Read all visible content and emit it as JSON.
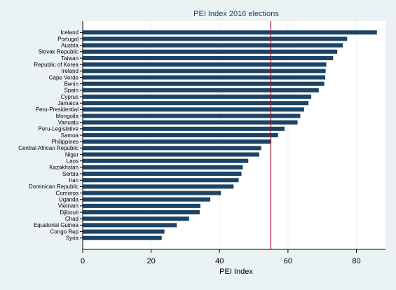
{
  "chart_data": {
    "type": "bar",
    "orientation": "horizontal",
    "title": "PEI Index 2016 elections",
    "xlabel": "PEI Index",
    "ylabel": "",
    "xlim": [
      0,
      88.5
    ],
    "x_ticks": [
      0,
      20,
      40,
      60,
      80
    ],
    "grid": true,
    "legend": "none",
    "reference_line": {
      "value": 55,
      "color": "#a3122a"
    },
    "bar_color": "#1d4466",
    "categories": [
      "Iceland",
      "Portugal",
      "Austria",
      "Slovak Republic",
      "Taiwan",
      "Republic of Korea",
      "Ireland",
      "Cape Verde",
      "Benin",
      "Spain",
      "Cyprus",
      "Jamaica",
      "Peru-Presidential",
      "Mongolia",
      "Vanuatu",
      "Peru-Legislative",
      "Samoa",
      "Philippines",
      "Central African Republic",
      "Niger",
      "Laos",
      "Kazakhstan",
      "Serbia",
      "Iran",
      "Dominican Republic",
      "Comoros",
      "Uganda",
      "Vietnam",
      "Djibouti",
      "Chad",
      "Equatorial Guinea",
      "Congo Rep",
      "Syria"
    ],
    "values": [
      86,
      77.3,
      76,
      74.4,
      73.2,
      71.2,
      71,
      70.9,
      70.6,
      69,
      66.8,
      66,
      64.7,
      63.6,
      62.8,
      59,
      57.1,
      55,
      52.2,
      51.6,
      48.4,
      46.8,
      46.4,
      45.6,
      44.1,
      40.4,
      37.3,
      34.4,
      34.2,
      31.1,
      27.5,
      23.9,
      23.1
    ]
  }
}
